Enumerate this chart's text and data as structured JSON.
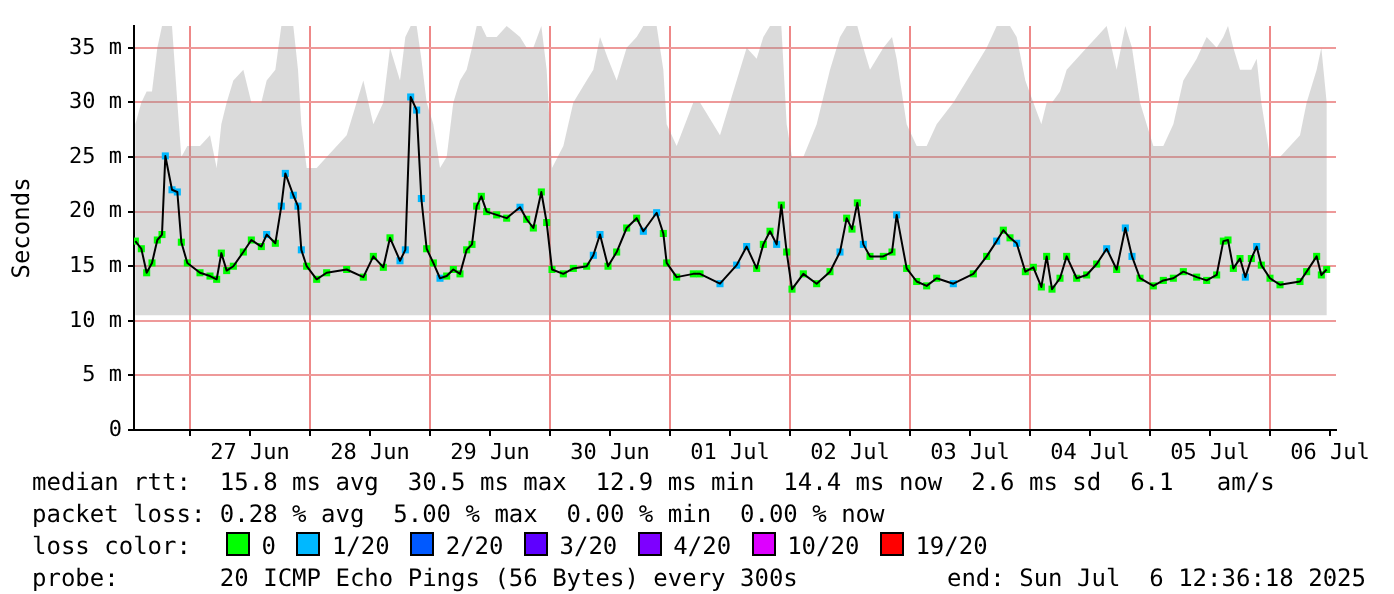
{
  "chart_data": {
    "type": "line",
    "ylabel": "Seconds",
    "legend_title": "loss color:",
    "legend": "bottom",
    "grid": true,
    "marker": "square",
    "xlim": [
      "2025-06-26T12:48",
      "2025-07-06T13:12"
    ],
    "xticks": [
      {
        "value": "2025-06-27T00:00",
        "label": null
      },
      {
        "value": "2025-06-27T12:00",
        "label": "27 Jun"
      },
      {
        "value": "2025-06-28T00:00",
        "label": null
      },
      {
        "value": "2025-06-28T12:00",
        "label": "28 Jun"
      },
      {
        "value": "2025-06-29T00:00",
        "label": null
      },
      {
        "value": "2025-06-29T12:00",
        "label": "29 Jun"
      },
      {
        "value": "2025-06-30T00:00",
        "label": null
      },
      {
        "value": "2025-06-30T12:00",
        "label": "30 Jun"
      },
      {
        "value": "2025-07-01T00:00",
        "label": null
      },
      {
        "value": "2025-07-01T12:00",
        "label": "01 Jul"
      },
      {
        "value": "2025-07-02T00:00",
        "label": null
      },
      {
        "value": "2025-07-02T12:00",
        "label": "02 Jul"
      },
      {
        "value": "2025-07-03T00:00",
        "label": null
      },
      {
        "value": "2025-07-03T12:00",
        "label": "03 Jul"
      },
      {
        "value": "2025-07-04T00:00",
        "label": null
      },
      {
        "value": "2025-07-04T12:00",
        "label": "04 Jul"
      },
      {
        "value": "2025-07-05T00:00",
        "label": null
      },
      {
        "value": "2025-07-05T12:00",
        "label": "05 Jul"
      },
      {
        "value": "2025-07-06T00:00",
        "label": null
      },
      {
        "value": "2025-07-06T12:00",
        "label": "06 Jul"
      }
    ],
    "ylim": [
      0,
      37
    ],
    "yticks": [
      0,
      {
        "value": 5,
        "label": "5 m"
      },
      {
        "value": 10,
        "label": "10 m"
      },
      {
        "value": 15,
        "label": "15 m"
      },
      {
        "value": 20,
        "label": "20 m"
      },
      {
        "value": 25,
        "label": "25 m"
      },
      {
        "value": 30,
        "label": "30 m"
      },
      {
        "value": 35,
        "label": "35 m"
      }
    ],
    "x": [
      "2025-06-26T13:04",
      "2025-06-26T14:16",
      "2025-06-26T15:20",
      "2025-06-26T16:24",
      "2025-06-26T17:28",
      "2025-06-26T18:24",
      "2025-06-26T19:04",
      "2025-06-26T20:24",
      "2025-06-26T21:28",
      "2025-06-26T22:16",
      "2025-06-26T23:28",
      "2025-06-27T02:00",
      "2025-06-27T04:00",
      "2025-06-27T05:20",
      "2025-06-27T06:16",
      "2025-06-27T07:20",
      "2025-06-27T08:40",
      "2025-06-27T10:40",
      "2025-06-27T12:16",
      "2025-06-27T14:16",
      "2025-06-27T15:20",
      "2025-06-27T17:04",
      "2025-06-27T18:16",
      "2025-06-27T19:04",
      "2025-06-27T20:40",
      "2025-06-27T21:36",
      "2025-06-27T22:16",
      "2025-06-27T23:20",
      "2025-06-28T01:20",
      "2025-06-28T03:20",
      "2025-06-28T07:20",
      "2025-06-28T10:40",
      "2025-06-28T12:40",
      "2025-06-28T14:40",
      "2025-06-28T16:00",
      "2025-06-28T18:00",
      "2025-06-28T19:04",
      "2025-06-28T20:08",
      "2025-06-28T21:20",
      "2025-06-28T22:16",
      "2025-06-28T23:20",
      "2025-06-29T00:40",
      "2025-06-29T02:00",
      "2025-06-29T03:20",
      "2025-06-29T04:40",
      "2025-06-29T06:00",
      "2025-06-29T07:20",
      "2025-06-29T08:24",
      "2025-06-29T09:20",
      "2025-06-29T10:16",
      "2025-06-29T11:20",
      "2025-06-29T13:20",
      "2025-06-29T15:20",
      "2025-06-29T18:00",
      "2025-06-29T19:20",
      "2025-06-29T20:40",
      "2025-06-29T22:16",
      "2025-06-29T23:20",
      "2025-06-30T00:24",
      "2025-06-30T02:40",
      "2025-06-30T04:40",
      "2025-06-30T07:20",
      "2025-06-30T08:40",
      "2025-06-30T10:00",
      "2025-06-30T11:36",
      "2025-06-30T13:20",
      "2025-06-30T15:20",
      "2025-06-30T17:20",
      "2025-06-30T18:40",
      "2025-06-30T21:20",
      "2025-06-30T22:40",
      "2025-06-30T23:20",
      "2025-07-01T01:20",
      "2025-07-01T04:40",
      "2025-07-01T06:00",
      "2025-07-01T10:00",
      "2025-07-01T13:20",
      "2025-07-01T15:20",
      "2025-07-01T17:20",
      "2025-07-01T18:40",
      "2025-07-01T20:00",
      "2025-07-01T21:20",
      "2025-07-01T22:16",
      "2025-07-01T23:20",
      "2025-07-02T00:24",
      "2025-07-02T02:40",
      "2025-07-02T05:20",
      "2025-07-02T08:00",
      "2025-07-02T10:00",
      "2025-07-02T11:20",
      "2025-07-02T12:24",
      "2025-07-02T13:28",
      "2025-07-02T14:40",
      "2025-07-02T16:00",
      "2025-07-02T18:40",
      "2025-07-02T20:24",
      "2025-07-02T21:20",
      "2025-07-02T23:20",
      "2025-07-03T01:20",
      "2025-07-03T03:20",
      "2025-07-03T05:20",
      "2025-07-03T08:40",
      "2025-07-03T12:40",
      "2025-07-03T15:20",
      "2025-07-03T17:20",
      "2025-07-03T18:40",
      "2025-07-03T20:00",
      "2025-07-03T21:20",
      "2025-07-03T23:04",
      "2025-07-04T00:40",
      "2025-07-04T02:16",
      "2025-07-04T03:20",
      "2025-07-04T04:24",
      "2025-07-04T06:00",
      "2025-07-04T07:20",
      "2025-07-04T09:20",
      "2025-07-04T11:20",
      "2025-07-04T13:20",
      "2025-07-04T15:20",
      "2025-07-04T17:20",
      "2025-07-04T19:04",
      "2025-07-04T20:24",
      "2025-07-04T22:00",
      "2025-07-05T00:40",
      "2025-07-05T02:40",
      "2025-07-05T04:40",
      "2025-07-05T06:40",
      "2025-07-05T09:20",
      "2025-07-05T11:20",
      "2025-07-05T13:20",
      "2025-07-05T14:40",
      "2025-07-05T15:36",
      "2025-07-05T16:40",
      "2025-07-05T18:00",
      "2025-07-05T19:04",
      "2025-07-05T20:16",
      "2025-07-05T21:20",
      "2025-07-05T22:16",
      "2025-07-06T00:00",
      "2025-07-06T02:00",
      "2025-07-06T06:00",
      "2025-07-06T07:20",
      "2025-07-06T09:20",
      "2025-07-06T10:16",
      "2025-07-06T11:20"
    ],
    "series": [
      {
        "color": "#000000",
        "marker": "none",
        "values": [
          17.3,
          16.6,
          14.4,
          15.3,
          17.4,
          17.9,
          25.1,
          22.0,
          21.8,
          17.2,
          15.3,
          14.4,
          14.1,
          13.8,
          16.2,
          14.6,
          15.0,
          16.3,
          17.4,
          16.8,
          17.9,
          17.1,
          20.5,
          23.5,
          21.5,
          20.5,
          16.5,
          15.0,
          13.8,
          14.4,
          14.7,
          14.0,
          15.9,
          14.9,
          17.6,
          15.5,
          16.5,
          30.5,
          29.3,
          21.2,
          16.6,
          15.3,
          13.9,
          14.1,
          14.7,
          14.3,
          16.5,
          17.0,
          20.5,
          21.4,
          20.0,
          19.7,
          19.4,
          20.4,
          19.3,
          18.5,
          21.8,
          19.0,
          14.7,
          14.3,
          14.8,
          15.0,
          16.0,
          17.9,
          15.0,
          16.3,
          18.5,
          19.4,
          18.2,
          19.9,
          18.0,
          15.3,
          14.0,
          14.3,
          14.3,
          13.4,
          15.1,
          16.8,
          14.8,
          17.0,
          18.2,
          17.0,
          20.6,
          16.3,
          12.9,
          14.3,
          13.4,
          14.5,
          16.3,
          19.4,
          18.4,
          20.8,
          17.0,
          15.9,
          15.9,
          16.3,
          19.7,
          14.8,
          13.6,
          13.2,
          13.9,
          13.4,
          14.3,
          15.9,
          17.3,
          18.3,
          17.6,
          17.1,
          14.5,
          14.9,
          13.1,
          15.9,
          12.9,
          13.9,
          15.9,
          13.9,
          14.2,
          15.2,
          16.6,
          14.7,
          18.5,
          15.9,
          13.9,
          13.2,
          13.7,
          13.9,
          14.5,
          14.0,
          13.7,
          14.2,
          17.3,
          17.4,
          14.8,
          15.7,
          14.0,
          15.7,
          16.8,
          15.1,
          13.9,
          13.3,
          13.6,
          14.5,
          15.9,
          14.2,
          14.7
        ],
        "lower": [
          10.5,
          10.5,
          10.5,
          10.5,
          10.5,
          10.5,
          10.5,
          10.5,
          10.5,
          10.5,
          10.5,
          10.5,
          10.5,
          10.5,
          10.5,
          10.5,
          10.5,
          10.5,
          10.5,
          10.5,
          10.5,
          10.5,
          10.5,
          10.5,
          10.5,
          10.5,
          10.5,
          10.5,
          10.5,
          10.5,
          10.5,
          10.5,
          10.5,
          10.5,
          10.5,
          10.5,
          10.5,
          10.5,
          10.5,
          10.5,
          10.5,
          10.5,
          10.5,
          10.5,
          10.5,
          10.5,
          10.5,
          10.5,
          10.5,
          10.5,
          10.5,
          10.5,
          10.5,
          10.5,
          10.5,
          10.5,
          10.5,
          10.5,
          10.5,
          10.5,
          10.5,
          10.5,
          10.5,
          10.5,
          10.5,
          10.5,
          10.5,
          10.5,
          10.5,
          10.5,
          10.5,
          10.5,
          10.5,
          10.5,
          10.5,
          10.5,
          10.5,
          10.5,
          10.5,
          10.5,
          10.5,
          10.5,
          10.5,
          10.5,
          10.5,
          10.5,
          10.5,
          10.5,
          10.5,
          10.5,
          10.5,
          10.5,
          10.5,
          10.5,
          10.5,
          10.5,
          10.5,
          10.5,
          10.5,
          10.5,
          10.5,
          10.5,
          10.5,
          10.5,
          10.5,
          10.5,
          10.5,
          10.5,
          10.5,
          10.5,
          10.5,
          10.5,
          10.5,
          10.5,
          10.5,
          10.5,
          10.5,
          10.5,
          10.5,
          10.5,
          10.5,
          10.5,
          10.5,
          10.5,
          10.5,
          10.5,
          10.5,
          10.5,
          10.5,
          10.5,
          10.5,
          10.5,
          10.5,
          10.5,
          10.5,
          10.5,
          10.5,
          10.5,
          10.5,
          10.5,
          10.5,
          10.5,
          10.5,
          10.5,
          10.5
        ],
        "upper": [
          28,
          30,
          31,
          31,
          35,
          37,
          37,
          37,
          30,
          25,
          26,
          26,
          27,
          24,
          28,
          30,
          32,
          33,
          30,
          30,
          32,
          33,
          37,
          37,
          37,
          33,
          28,
          24,
          24,
          25,
          27,
          32,
          28,
          30,
          35,
          32,
          36,
          37,
          37,
          34,
          30,
          28,
          24,
          25,
          30,
          32,
          33,
          35,
          37,
          37,
          36,
          36,
          37,
          36,
          35,
          35,
          37,
          33,
          24,
          26,
          30,
          32,
          33,
          36,
          34,
          32,
          35,
          36,
          37,
          37,
          33,
          28,
          26,
          30,
          30,
          27,
          32,
          35,
          34,
          36,
          37,
          37,
          37,
          28,
          25,
          25,
          28,
          33,
          36,
          37,
          37,
          37,
          35,
          33,
          35,
          36,
          34,
          28,
          26,
          26,
          28,
          30,
          33,
          35,
          37,
          37,
          37,
          36,
          32,
          30,
          28,
          30,
          30,
          31,
          33,
          34,
          35,
          36,
          37,
          33,
          37,
          35,
          30,
          26,
          26,
          28,
          32,
          34,
          36,
          35,
          36,
          37,
          35,
          33,
          33,
          33,
          34,
          30,
          25,
          25,
          27,
          30,
          33,
          35,
          30
        ]
      },
      {
        "type": "scatter",
        "name": "0",
        "color": "#00ff00",
        "values": [
          17.3,
          16.6,
          14.4,
          15.3,
          17.4,
          17.9,
          null,
          null,
          null,
          17.2,
          15.3,
          14.4,
          14.1,
          13.8,
          16.2,
          14.6,
          15.0,
          16.3,
          17.4,
          16.8,
          null,
          17.1,
          null,
          null,
          null,
          null,
          null,
          15.0,
          13.8,
          14.4,
          14.7,
          14.0,
          15.9,
          14.9,
          17.6,
          null,
          null,
          null,
          null,
          null,
          16.6,
          15.3,
          null,
          14.1,
          14.7,
          14.3,
          16.5,
          17.0,
          20.5,
          21.4,
          20.0,
          19.7,
          19.4,
          null,
          19.3,
          18.5,
          21.8,
          19.0,
          14.7,
          14.3,
          14.8,
          15.0,
          null,
          null,
          15.0,
          16.3,
          18.5,
          19.4,
          null,
          null,
          18.0,
          15.3,
          14.0,
          14.3,
          14.3,
          null,
          null,
          null,
          14.8,
          17.0,
          18.2,
          null,
          20.6,
          16.3,
          12.9,
          14.3,
          13.4,
          14.5,
          null,
          19.4,
          18.4,
          20.8,
          null,
          15.9,
          15.9,
          16.3,
          null,
          14.8,
          13.6,
          13.2,
          13.9,
          null,
          14.3,
          15.9,
          null,
          18.3,
          17.6,
          null,
          14.5,
          14.9,
          13.1,
          15.9,
          12.9,
          13.9,
          15.9,
          13.9,
          14.2,
          15.2,
          null,
          14.7,
          null,
          null,
          13.9,
          13.2,
          13.7,
          13.9,
          14.5,
          14.0,
          13.7,
          14.2,
          17.3,
          17.4,
          14.8,
          15.7,
          null,
          15.7,
          null,
          15.1,
          13.9,
          13.3,
          13.6,
          14.5,
          15.9,
          14.2,
          14.7
        ]
      },
      {
        "type": "scatter",
        "name": "1/20",
        "color": "#00b8ff",
        "values": [
          null,
          null,
          null,
          null,
          null,
          null,
          25.1,
          22.0,
          21.8,
          null,
          null,
          null,
          null,
          null,
          null,
          null,
          null,
          null,
          null,
          null,
          17.9,
          null,
          20.5,
          23.5,
          21.5,
          20.5,
          16.5,
          null,
          null,
          null,
          null,
          null,
          null,
          null,
          null,
          15.5,
          16.5,
          30.5,
          29.3,
          21.2,
          null,
          null,
          13.9,
          null,
          null,
          null,
          null,
          null,
          null,
          null,
          null,
          null,
          null,
          20.4,
          null,
          null,
          null,
          null,
          null,
          null,
          null,
          null,
          16.0,
          17.9,
          null,
          null,
          null,
          null,
          18.2,
          19.9,
          null,
          null,
          null,
          null,
          null,
          13.4,
          15.1,
          16.8,
          null,
          null,
          null,
          17.0,
          null,
          null,
          null,
          null,
          null,
          null,
          16.3,
          null,
          null,
          null,
          17.0,
          null,
          null,
          null,
          19.7,
          null,
          null,
          null,
          null,
          13.4,
          null,
          null,
          17.3,
          null,
          null,
          17.1,
          null,
          null,
          null,
          null,
          null,
          null,
          null,
          null,
          null,
          null,
          16.6,
          null,
          18.5,
          15.9,
          null,
          null,
          null,
          null,
          null,
          null,
          null,
          null,
          null,
          null,
          null,
          null,
          14.0,
          null,
          16.8,
          null,
          null,
          null,
          null,
          null,
          null,
          null,
          null
        ]
      },
      {
        "type": "scatter",
        "name": "2/20",
        "color": "#0059ff",
        "values": [
          null,
          null,
          null,
          null,
          null,
          null,
          null,
          null,
          null,
          null,
          null,
          null,
          null,
          null,
          null,
          null,
          null,
          null,
          null,
          null,
          null,
          null,
          null,
          null,
          null,
          null,
          null,
          null,
          null,
          null,
          null,
          null,
          null,
          null,
          null,
          null,
          null,
          null,
          null,
          null,
          null,
          null,
          null,
          null,
          null,
          null,
          null,
          null,
          null,
          null,
          null,
          null,
          null,
          null,
          null,
          null,
          null,
          null,
          null,
          null,
          null,
          null,
          null,
          null,
          null,
          null,
          null,
          null,
          null,
          null,
          null,
          null,
          null,
          null,
          null,
          null,
          null,
          null,
          null,
          null,
          null,
          null,
          null,
          null,
          null,
          null,
          null,
          null,
          null,
          null,
          null,
          null,
          null,
          null,
          null,
          null,
          null,
          null,
          null,
          null,
          null,
          null,
          null,
          null,
          null,
          null,
          null,
          null,
          null,
          null,
          null,
          null,
          null,
          null,
          null,
          null,
          null,
          null,
          null,
          null,
          null,
          null,
          null,
          null,
          null,
          null,
          null,
          null,
          null,
          null,
          null,
          null,
          null,
          null,
          null,
          null,
          null,
          null,
          null,
          null,
          null,
          null,
          null,
          null,
          null
        ]
      },
      {
        "type": "scatter",
        "name": "3/20",
        "color": "#5e00ff",
        "values": [
          null,
          null,
          null,
          null,
          null,
          null,
          null,
          null,
          null,
          null,
          null,
          null,
          null,
          null,
          null,
          null,
          null,
          null,
          null,
          null,
          null,
          null,
          null,
          null,
          null,
          null,
          null,
          null,
          null,
          null,
          null,
          null,
          null,
          null,
          null,
          null,
          null,
          null,
          null,
          null,
          null,
          null,
          null,
          null,
          null,
          null,
          null,
          null,
          null,
          null,
          null,
          null,
          null,
          null,
          null,
          null,
          null,
          null,
          null,
          null,
          null,
          null,
          null,
          null,
          null,
          null,
          null,
          null,
          null,
          null,
          null,
          null,
          null,
          null,
          null,
          null,
          null,
          null,
          null,
          null,
          null,
          null,
          null,
          null,
          null,
          null,
          null,
          null,
          null,
          null,
          null,
          null,
          null,
          null,
          null,
          null,
          null,
          null,
          null,
          null,
          null,
          null,
          null,
          null,
          null,
          null,
          null,
          null,
          null,
          null,
          null,
          null,
          null,
          null,
          null,
          null,
          null,
          null,
          null,
          null,
          null,
          null,
          null,
          null,
          null,
          null,
          null,
          null,
          null,
          null,
          null,
          null,
          null,
          null,
          null,
          null,
          null,
          null,
          null,
          null,
          null,
          null,
          null,
          null,
          null
        ]
      },
      {
        "type": "scatter",
        "name": "4/20",
        "color": "#7e00ff",
        "values": [
          null,
          null,
          null,
          null,
          null,
          null,
          null,
          null,
          null,
          null,
          null,
          null,
          null,
          null,
          null,
          null,
          null,
          null,
          null,
          null,
          null,
          null,
          null,
          null,
          null,
          null,
          null,
          null,
          null,
          null,
          null,
          null,
          null,
          null,
          null,
          null,
          null,
          null,
          null,
          null,
          null,
          null,
          null,
          null,
          null,
          null,
          null,
          null,
          null,
          null,
          null,
          null,
          null,
          null,
          null,
          null,
          null,
          null,
          null,
          null,
          null,
          null,
          null,
          null,
          null,
          null,
          null,
          null,
          null,
          null,
          null,
          null,
          null,
          null,
          null,
          null,
          null,
          null,
          null,
          null,
          null,
          null,
          null,
          null,
          null,
          null,
          null,
          null,
          null,
          null,
          null,
          null,
          null,
          null,
          null,
          null,
          null,
          null,
          null,
          null,
          null,
          null,
          null,
          null,
          null,
          null,
          null,
          null,
          null,
          null,
          null,
          null,
          null,
          null,
          null,
          null,
          null,
          null,
          null,
          null,
          null,
          null,
          null,
          null,
          null,
          null,
          null,
          null,
          null,
          null,
          null,
          null,
          null,
          null,
          null,
          null,
          null,
          null,
          null,
          null,
          null,
          null,
          null,
          null,
          null
        ]
      },
      {
        "type": "scatter",
        "name": "10/20",
        "color": "#dd00ff",
        "values": [
          null,
          null,
          null,
          null,
          null,
          null,
          null,
          null,
          null,
          null,
          null,
          null,
          null,
          null,
          null,
          null,
          null,
          null,
          null,
          null,
          null,
          null,
          null,
          null,
          null,
          null,
          null,
          null,
          null,
          null,
          null,
          null,
          null,
          null,
          null,
          null,
          null,
          null,
          null,
          null,
          null,
          null,
          null,
          null,
          null,
          null,
          null,
          null,
          null,
          null,
          null,
          null,
          null,
          null,
          null,
          null,
          null,
          null,
          null,
          null,
          null,
          null,
          null,
          null,
          null,
          null,
          null,
          null,
          null,
          null,
          null,
          null,
          null,
          null,
          null,
          null,
          null,
          null,
          null,
          null,
          null,
          null,
          null,
          null,
          null,
          null,
          null,
          null,
          null,
          null,
          null,
          null,
          null,
          null,
          null,
          null,
          null,
          null,
          null,
          null,
          null,
          null,
          null,
          null,
          null,
          null,
          null,
          null,
          null,
          null,
          null,
          null,
          null,
          null,
          null,
          null,
          null,
          null,
          null,
          null,
          null,
          null,
          null,
          null,
          null,
          null,
          null,
          null,
          null,
          null,
          null,
          null,
          null,
          null,
          null,
          null,
          null,
          null,
          null,
          null,
          null,
          null,
          null,
          null,
          null
        ]
      },
      {
        "type": "scatter",
        "name": "19/20",
        "color": "#ff0000",
        "values": [
          null,
          null,
          null,
          null,
          null,
          null,
          null,
          null,
          null,
          null,
          null,
          null,
          null,
          null,
          null,
          null,
          null,
          null,
          null,
          null,
          null,
          null,
          null,
          null,
          null,
          null,
          null,
          null,
          null,
          null,
          null,
          null,
          null,
          null,
          null,
          null,
          null,
          null,
          null,
          null,
          null,
          null,
          null,
          null,
          null,
          null,
          null,
          null,
          null,
          null,
          null,
          null,
          null,
          null,
          null,
          null,
          null,
          null,
          null,
          null,
          null,
          null,
          null,
          null,
          null,
          null,
          null,
          null,
          null,
          null,
          null,
          null,
          null,
          null,
          null,
          null,
          null,
          null,
          null,
          null,
          null,
          null,
          null,
          null,
          null,
          null,
          null,
          null,
          null,
          null,
          null,
          null,
          null,
          null,
          null,
          null,
          null,
          null,
          null,
          null,
          null,
          null,
          null,
          null,
          null,
          null,
          null,
          null,
          null,
          null,
          null,
          null,
          null,
          null,
          null,
          null,
          null,
          null,
          null,
          null,
          null,
          null,
          null,
          null,
          null,
          null,
          null,
          null,
          null,
          null,
          null,
          null,
          null,
          null,
          null,
          null,
          null,
          null,
          null,
          null,
          null,
          null,
          null,
          null,
          null
        ]
      }
    ],
    "annotations": [
      "median rtt:  15.8 ms avg  30.5 ms max  12.9 ms min  14.4 ms now  2.6 ms sd  6.1   am/s",
      "packet loss: 0.28 % avg  5.00 % max  0.00 % min  0.00 % now",
      "probe:       20 ICMP Echo Pings (56 Bytes) every 300s",
      "end: Sun Jul  6 12:36:18 2025"
    ]
  }
}
